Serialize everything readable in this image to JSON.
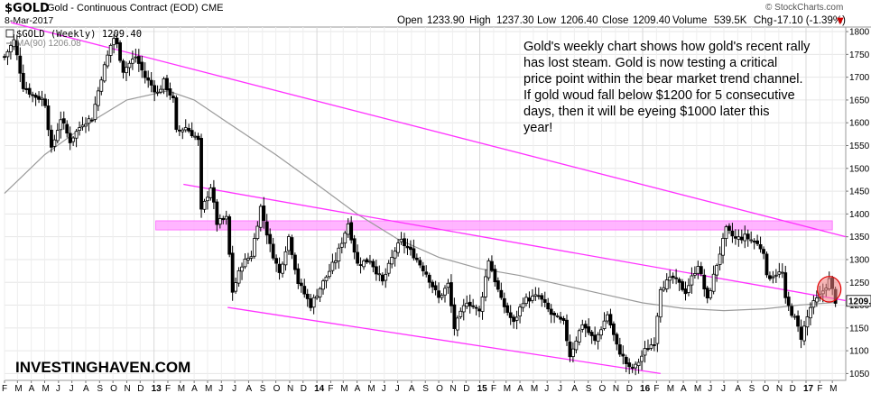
{
  "header": {
    "symbol": "$GOLD",
    "name": "Gold - Continuous Contract (EOD)",
    "exchange": "CME",
    "date": "8-Mar-2017",
    "copyright": "© StockCharts.com",
    "quote": {
      "open_label": "Open",
      "open": "1233.90",
      "high_label": "High",
      "high": "1237.30",
      "low_label": "Low",
      "low": "1206.40",
      "close_label": "Close",
      "close": "1209.40",
      "volume_label": "Volume",
      "volume": "539.5K",
      "chg_label": "Chg",
      "chg": "-17.10 (-1.39%)",
      "chg_arrow": "▼"
    }
  },
  "legend": {
    "main": "$GOLD (Weekly) 1209.40",
    "ma": "MA(90) 1206.08"
  },
  "annotation": "Gold's weekly chart shows how gold's recent rally has lost steam. Gold is now testing a critical price point within the bear market trend channel. If gold woud fall below $1200 for 5 consecutive days, then it will be eyeing $1000 later this year!",
  "brand": "INVESTINGHAVEN.COM",
  "last_price_label": "1209.",
  "colors": {
    "price": "#000000",
    "ma": "#9a9a9a",
    "trendline": "#ff33ff",
    "zone": "#ffa8ff",
    "circle_fill": "#f08080",
    "circle_stroke": "#e00000",
    "down_arrow": "#d00000"
  },
  "chart_data": {
    "type": "candlestick",
    "period": "weekly",
    "ylim": [
      1035,
      1810
    ],
    "y_ticks": [
      1050,
      1100,
      1150,
      1200,
      1250,
      1300,
      1350,
      1400,
      1450,
      1500,
      1550,
      1600,
      1650,
      1700,
      1750,
      1800
    ],
    "x_range": [
      "2012-02-01",
      "2017-03-31"
    ],
    "x_ticks": [
      {
        "date": "2012-02-01",
        "label": "F"
      },
      {
        "date": "2012-03-01",
        "label": "M"
      },
      {
        "date": "2012-04-01",
        "label": "A"
      },
      {
        "date": "2012-05-01",
        "label": "M"
      },
      {
        "date": "2012-06-01",
        "label": "J"
      },
      {
        "date": "2012-07-01",
        "label": "J"
      },
      {
        "date": "2012-08-01",
        "label": "A"
      },
      {
        "date": "2012-09-01",
        "label": "S"
      },
      {
        "date": "2012-10-01",
        "label": "O"
      },
      {
        "date": "2012-11-01",
        "label": "N"
      },
      {
        "date": "2012-12-01",
        "label": "D"
      },
      {
        "date": "2013-01-01",
        "label": "13",
        "year": true
      },
      {
        "date": "2013-02-01",
        "label": "F"
      },
      {
        "date": "2013-03-01",
        "label": "M"
      },
      {
        "date": "2013-04-01",
        "label": "A"
      },
      {
        "date": "2013-05-01",
        "label": "M"
      },
      {
        "date": "2013-06-01",
        "label": "J"
      },
      {
        "date": "2013-07-01",
        "label": "J"
      },
      {
        "date": "2013-08-01",
        "label": "A"
      },
      {
        "date": "2013-09-01",
        "label": "S"
      },
      {
        "date": "2013-10-01",
        "label": "O"
      },
      {
        "date": "2013-11-01",
        "label": "N"
      },
      {
        "date": "2013-12-01",
        "label": "D"
      },
      {
        "date": "2014-01-01",
        "label": "14",
        "year": true
      },
      {
        "date": "2014-02-01",
        "label": "F"
      },
      {
        "date": "2014-03-01",
        "label": "M"
      },
      {
        "date": "2014-04-01",
        "label": "A"
      },
      {
        "date": "2014-05-01",
        "label": "M"
      },
      {
        "date": "2014-06-01",
        "label": "J"
      },
      {
        "date": "2014-07-01",
        "label": "J"
      },
      {
        "date": "2014-08-01",
        "label": "A"
      },
      {
        "date": "2014-09-01",
        "label": "S"
      },
      {
        "date": "2014-10-01",
        "label": "O"
      },
      {
        "date": "2014-11-01",
        "label": "N"
      },
      {
        "date": "2014-12-01",
        "label": "D"
      },
      {
        "date": "2015-01-01",
        "label": "15",
        "year": true
      },
      {
        "date": "2015-02-01",
        "label": "F"
      },
      {
        "date": "2015-03-01",
        "label": "M"
      },
      {
        "date": "2015-04-01",
        "label": "A"
      },
      {
        "date": "2015-05-01",
        "label": "M"
      },
      {
        "date": "2015-06-01",
        "label": "J"
      },
      {
        "date": "2015-07-01",
        "label": "J"
      },
      {
        "date": "2015-08-01",
        "label": "A"
      },
      {
        "date": "2015-09-01",
        "label": "S"
      },
      {
        "date": "2015-10-01",
        "label": "O"
      },
      {
        "date": "2015-11-01",
        "label": "N"
      },
      {
        "date": "2015-12-01",
        "label": "D"
      },
      {
        "date": "2016-01-01",
        "label": "16",
        "year": true
      },
      {
        "date": "2016-02-01",
        "label": "F"
      },
      {
        "date": "2016-03-01",
        "label": "M"
      },
      {
        "date": "2016-04-01",
        "label": "A"
      },
      {
        "date": "2016-05-01",
        "label": "M"
      },
      {
        "date": "2016-06-01",
        "label": "J"
      },
      {
        "date": "2016-07-01",
        "label": "J"
      },
      {
        "date": "2016-08-01",
        "label": "A"
      },
      {
        "date": "2016-09-01",
        "label": "S"
      },
      {
        "date": "2016-10-01",
        "label": "O"
      },
      {
        "date": "2016-11-01",
        "label": "N"
      },
      {
        "date": "2016-12-01",
        "label": "D"
      },
      {
        "date": "2017-01-01",
        "label": "17",
        "year": true
      },
      {
        "date": "2017-02-01",
        "label": "F"
      },
      {
        "date": "2017-03-01",
        "label": "M"
      }
    ],
    "price_key_points": [
      [
        "2012-02-01",
        1745
      ],
      [
        "2012-02-22",
        1780
      ],
      [
        "2012-03-14",
        1680
      ],
      [
        "2012-04-05",
        1660
      ],
      [
        "2012-05-01",
        1650
      ],
      [
        "2012-05-16",
        1540
      ],
      [
        "2012-06-06",
        1610
      ],
      [
        "2012-06-27",
        1560
      ],
      [
        "2012-07-25",
        1600
      ],
      [
        "2012-08-15",
        1610
      ],
      [
        "2012-09-05",
        1700
      ],
      [
        "2012-09-26",
        1770
      ],
      [
        "2012-10-05",
        1790
      ],
      [
        "2012-10-24",
        1715
      ],
      [
        "2012-11-21",
        1745
      ],
      [
        "2012-12-12",
        1700
      ],
      [
        "2013-01-09",
        1665
      ],
      [
        "2013-01-23",
        1690
      ],
      [
        "2013-02-13",
        1650
      ],
      [
        "2013-02-20",
        1580
      ],
      [
        "2013-03-13",
        1590
      ],
      [
        "2013-04-03",
        1570
      ],
      [
        "2013-04-10",
        1560
      ],
      [
        "2013-04-15",
        1400
      ],
      [
        "2013-05-08",
        1460
      ],
      [
        "2013-05-22",
        1380
      ],
      [
        "2013-06-12",
        1390
      ],
      [
        "2013-06-26",
        1230
      ],
      [
        "2013-07-17",
        1290
      ],
      [
        "2013-08-07",
        1310
      ],
      [
        "2013-08-28",
        1415
      ],
      [
        "2013-09-18",
        1330
      ],
      [
        "2013-10-09",
        1270
      ],
      [
        "2013-10-30",
        1350
      ],
      [
        "2013-11-20",
        1250
      ],
      [
        "2013-12-18",
        1200
      ],
      [
        "2014-01-15",
        1250
      ],
      [
        "2014-02-12",
        1300
      ],
      [
        "2014-03-12",
        1380
      ],
      [
        "2014-04-02",
        1290
      ],
      [
        "2014-04-30",
        1300
      ],
      [
        "2014-05-28",
        1250
      ],
      [
        "2014-06-25",
        1320
      ],
      [
        "2014-07-09",
        1340
      ],
      [
        "2014-08-06",
        1310
      ],
      [
        "2014-09-03",
        1270
      ],
      [
        "2014-10-01",
        1215
      ],
      [
        "2014-10-22",
        1245
      ],
      [
        "2014-11-05",
        1150
      ],
      [
        "2014-12-03",
        1210
      ],
      [
        "2014-12-31",
        1185
      ],
      [
        "2015-01-21",
        1300
      ],
      [
        "2015-02-18",
        1210
      ],
      [
        "2015-03-18",
        1160
      ],
      [
        "2015-04-08",
        1210
      ],
      [
        "2015-05-13",
        1220
      ],
      [
        "2015-06-10",
        1180
      ],
      [
        "2015-07-08",
        1160
      ],
      [
        "2015-07-22",
        1090
      ],
      [
        "2015-08-19",
        1160
      ],
      [
        "2015-09-16",
        1120
      ],
      [
        "2015-10-14",
        1180
      ],
      [
        "2015-11-04",
        1110
      ],
      [
        "2015-12-02",
        1060
      ],
      [
        "2015-12-16",
        1065
      ],
      [
        "2016-01-06",
        1100
      ],
      [
        "2016-01-27",
        1120
      ],
      [
        "2016-02-10",
        1240
      ],
      [
        "2016-03-09",
        1260
      ],
      [
        "2016-04-06",
        1230
      ],
      [
        "2016-05-04",
        1290
      ],
      [
        "2016-05-25",
        1210
      ],
      [
        "2016-06-15",
        1290
      ],
      [
        "2016-07-06",
        1365
      ],
      [
        "2016-07-27",
        1345
      ],
      [
        "2016-08-17",
        1350
      ],
      [
        "2016-09-07",
        1340
      ],
      [
        "2016-09-28",
        1320
      ],
      [
        "2016-10-05",
        1260
      ],
      [
        "2016-10-26",
        1270
      ],
      [
        "2016-11-09",
        1270
      ],
      [
        "2016-11-16",
        1210
      ],
      [
        "2016-12-07",
        1170
      ],
      [
        "2016-12-21",
        1130
      ],
      [
        "2017-01-11",
        1195
      ],
      [
        "2017-02-01",
        1220
      ],
      [
        "2017-02-22",
        1255
      ],
      [
        "2017-03-08",
        1209.4
      ]
    ],
    "ma90_points": [
      [
        "2012-02-01",
        1445
      ],
      [
        "2012-05-01",
        1530
      ],
      [
        "2012-08-01",
        1595
      ],
      [
        "2012-11-01",
        1650
      ],
      [
        "2013-02-01",
        1670
      ],
      [
        "2013-04-01",
        1650
      ],
      [
        "2013-07-01",
        1590
      ],
      [
        "2013-10-01",
        1530
      ],
      [
        "2014-01-01",
        1465
      ],
      [
        "2014-04-01",
        1400
      ],
      [
        "2014-07-01",
        1345
      ],
      [
        "2014-10-01",
        1305
      ],
      [
        "2015-01-01",
        1280
      ],
      [
        "2015-04-01",
        1265
      ],
      [
        "2015-07-01",
        1245
      ],
      [
        "2015-10-01",
        1225
      ],
      [
        "2016-01-01",
        1205
      ],
      [
        "2016-04-01",
        1193
      ],
      [
        "2016-07-01",
        1188
      ],
      [
        "2016-10-01",
        1192
      ],
      [
        "2016-12-15",
        1200
      ],
      [
        "2017-03-08",
        1206.08
      ]
    ],
    "trendlines": [
      {
        "from": [
          "2012-02-15",
          1820
        ],
        "to": [
          "2017-03-31",
          1350
        ]
      },
      {
        "from": [
          "2013-03-08",
          1465
        ],
        "to": [
          "2017-03-31",
          1210
        ]
      },
      {
        "from": [
          "2013-06-15",
          1195
        ],
        "to": [
          "2016-02-10",
          1050
        ]
      }
    ],
    "resistance_zone": {
      "from": "2013-01-05",
      "to": "2017-03-01",
      "y_low": 1365,
      "y_high": 1385
    },
    "highlight": {
      "date": "2017-02-22",
      "y_center": 1235,
      "y_radius": 28
    }
  }
}
